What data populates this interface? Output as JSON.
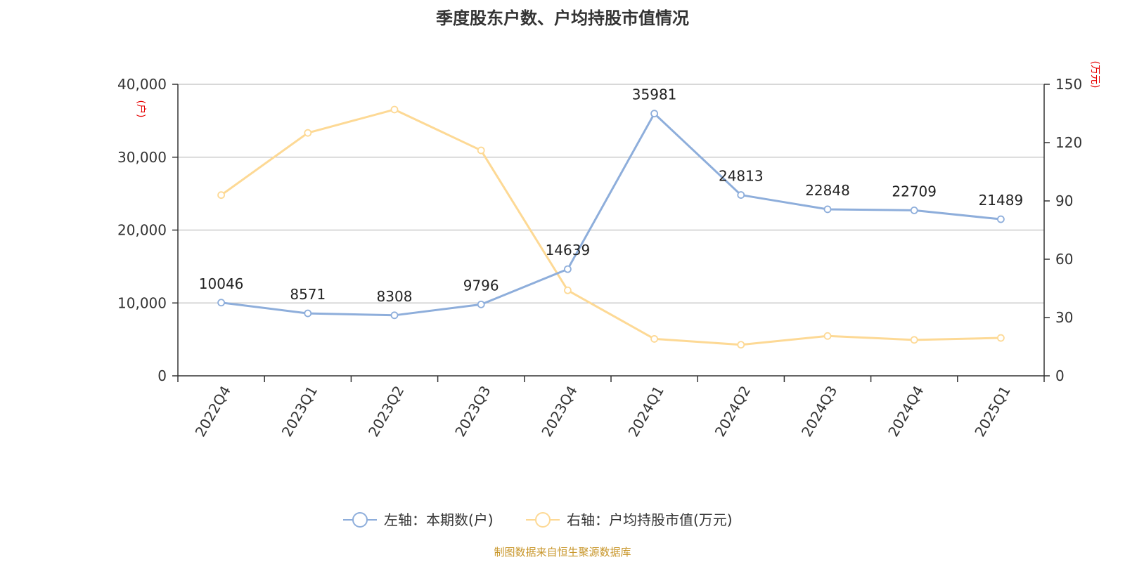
{
  "title": "季度股东户数、户均持股市值情况",
  "source": "制图数据来自恒生聚源数据库",
  "colors": {
    "holders": "#8eaedb",
    "value": "#fdd995",
    "grid": "#cccccc",
    "axis": "#333333",
    "unit": "#e60000",
    "source": "#c8962a"
  },
  "chart_data": {
    "type": "line",
    "categories": [
      "2022Q4",
      "2023Q1",
      "2023Q2",
      "2023Q3",
      "2023Q4",
      "2024Q1",
      "2024Q2",
      "2024Q3",
      "2024Q4",
      "2025Q1"
    ],
    "left_axis": {
      "unit": "(户)",
      "ylim": [
        0,
        40000
      ],
      "ticks": [
        0,
        10000,
        20000,
        30000,
        40000
      ],
      "tick_labels": [
        "0",
        "10,000",
        "20,000",
        "30,000",
        "40,000"
      ]
    },
    "right_axis": {
      "unit": "(万元)",
      "ylim": [
        0,
        150
      ],
      "ticks": [
        0,
        30,
        60,
        90,
        120,
        150
      ],
      "tick_labels": [
        "0",
        "30",
        "60",
        "90",
        "120",
        "150"
      ]
    },
    "grid": true,
    "legend_position": "bottom",
    "series": [
      {
        "name": "左轴：本期数(户)",
        "axis": "left",
        "values": [
          10046,
          8571,
          8308,
          9796,
          14639,
          35981,
          24813,
          22848,
          22709,
          21489
        ],
        "labels": [
          "10046",
          "8571",
          "8308",
          "9796",
          "14639",
          "35981",
          "24813",
          "22848",
          "22709",
          "21489"
        ]
      },
      {
        "name": "右轴：户均持股市值(万元)",
        "axis": "right",
        "values": [
          93,
          125,
          137,
          116,
          44,
          19,
          16,
          20.5,
          18.5,
          19.5
        ]
      }
    ]
  }
}
